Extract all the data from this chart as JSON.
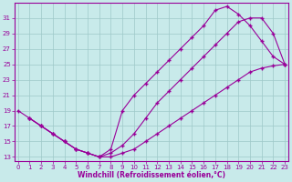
{
  "xlabel": "Windchill (Refroidissement éolien,°C)",
  "bg_color": "#c8eaea",
  "line_color": "#990099",
  "xlim": [
    -0.3,
    23.3
  ],
  "ylim": [
    12.5,
    33
  ],
  "xticks": [
    0,
    1,
    2,
    3,
    4,
    5,
    6,
    7,
    8,
    9,
    10,
    11,
    12,
    13,
    14,
    15,
    16,
    17,
    18,
    19,
    20,
    21,
    22,
    23
  ],
  "yticks": [
    13,
    15,
    17,
    19,
    21,
    23,
    25,
    27,
    29,
    31
  ],
  "grid_color": "#9ec8c8",
  "s1_x": [
    0,
    1,
    2,
    3,
    4,
    5,
    6,
    7,
    8,
    9,
    10,
    11,
    12,
    13,
    14,
    15,
    16,
    17,
    18,
    19,
    20,
    21,
    22,
    23
  ],
  "s1_y": [
    19,
    18,
    17,
    16,
    15,
    14,
    13.5,
    13,
    13,
    13.5,
    14,
    15,
    16,
    17,
    18,
    19,
    20,
    21,
    22,
    23,
    24,
    24.5,
    24.8,
    25
  ],
  "s2_x": [
    1,
    2,
    3,
    4,
    5,
    6,
    7,
    8,
    9,
    10,
    11,
    12,
    13,
    14,
    15,
    16,
    17,
    18,
    19,
    20,
    21,
    22,
    23
  ],
  "s2_y": [
    18,
    17,
    16,
    15,
    14,
    13.5,
    13,
    14,
    19,
    21,
    22.5,
    24,
    25.5,
    27,
    28.5,
    30,
    32,
    32.5,
    31.5,
    30,
    28,
    26,
    25
  ],
  "s3_x": [
    1,
    2,
    3,
    4,
    5,
    6,
    7,
    8,
    9,
    10,
    11,
    12,
    13,
    14,
    15,
    16,
    17,
    18,
    19,
    20,
    21,
    22,
    23
  ],
  "s3_y": [
    18,
    17,
    16,
    15,
    14,
    13.5,
    13,
    13.5,
    14.5,
    16,
    18,
    20,
    21.5,
    23,
    24.5,
    26,
    27.5,
    29,
    30.5,
    31,
    31,
    29,
    25
  ]
}
